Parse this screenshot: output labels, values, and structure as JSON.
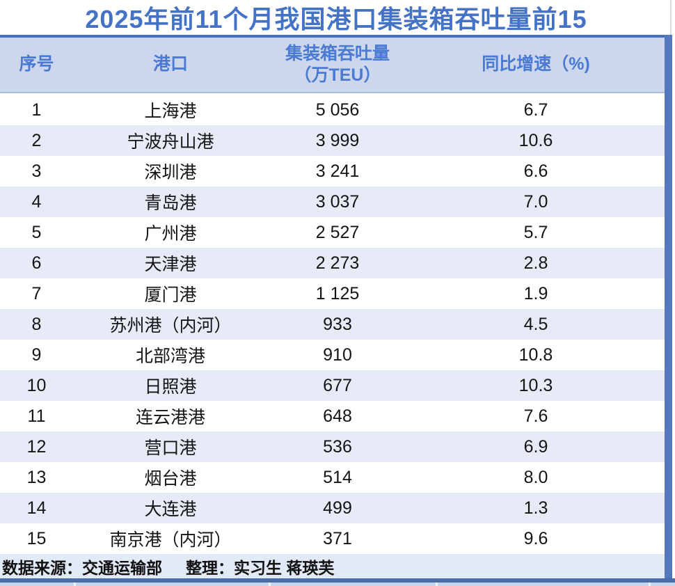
{
  "page": {
    "title": "2025年前11个月我国港口集装箱吞吐量前15"
  },
  "table": {
    "headers": {
      "rank": "序号",
      "port": "港口",
      "throughput_line1": "集装箱吞吐量",
      "throughput_line2": "（万TEU）",
      "growth": "同比增速（%)"
    },
    "rows": [
      {
        "rank": "1",
        "port": "上海港",
        "throughput": "5 056",
        "growth": "6.7"
      },
      {
        "rank": "2",
        "port": "宁波舟山港",
        "throughput": "3 999",
        "growth": "10.6"
      },
      {
        "rank": "3",
        "port": "深圳港",
        "throughput": "3 241",
        "growth": "6.6"
      },
      {
        "rank": "4",
        "port": "青岛港",
        "throughput": "3 037",
        "growth": "7.0"
      },
      {
        "rank": "5",
        "port": "广州港",
        "throughput": "2 527",
        "growth": "5.7"
      },
      {
        "rank": "6",
        "port": "天津港",
        "throughput": "2 273",
        "growth": "2.8"
      },
      {
        "rank": "7",
        "port": "厦门港",
        "throughput": "1 125",
        "growth": "1.9"
      },
      {
        "rank": "8",
        "port": "苏州港（内河）",
        "throughput": "933",
        "growth": "4.5"
      },
      {
        "rank": "9",
        "port": "北部湾港",
        "throughput": "910",
        "growth": "10.8"
      },
      {
        "rank": "10",
        "port": "日照港",
        "throughput": "677",
        "growth": "10.3"
      },
      {
        "rank": "11",
        "port": "连云港港",
        "throughput": "648",
        "growth": "7.6"
      },
      {
        "rank": "12",
        "port": "营口港",
        "throughput": "536",
        "growth": "6.9"
      },
      {
        "rank": "13",
        "port": "烟台港",
        "throughput": "514",
        "growth": "8.0"
      },
      {
        "rank": "14",
        "port": "大连港",
        "throughput": "499",
        "growth": "1.3"
      },
      {
        "rank": "15",
        "port": "南京港（内河）",
        "throughput": "371",
        "growth": "9.6"
      }
    ]
  },
  "footer": {
    "source": "数据来源：交通运输部",
    "editor": "整理：实习生 蒋瑛芙"
  },
  "colors": {
    "title_blue": "#4472C4",
    "rule_blue": "#4B6FB5",
    "header_bg": "#CCD6EC",
    "header_text": "#4A7AD1",
    "row_alt_bg": "#E7EBF7",
    "footer_bg": "#E2E9F7",
    "right_bar": "#5379BC",
    "bottom_bar": "#4A6DA8",
    "bottom_strip": "#C9D4EB",
    "body_text": "#141414"
  },
  "chart_data": {
    "type": "table",
    "title": "2025年前11个月我国港口集装箱吞吐量前15",
    "columns": [
      "序号",
      "港口",
      "集装箱吞吐量（万TEU）",
      "同比增速（%)"
    ],
    "rows": [
      [
        1,
        "上海港",
        5056,
        6.7
      ],
      [
        2,
        "宁波舟山港",
        3999,
        10.6
      ],
      [
        3,
        "深圳港",
        3241,
        6.6
      ],
      [
        4,
        "青岛港",
        3037,
        7.0
      ],
      [
        5,
        "广州港",
        2527,
        5.7
      ],
      [
        6,
        "天津港",
        2273,
        2.8
      ],
      [
        7,
        "厦门港",
        1125,
        1.9
      ],
      [
        8,
        "苏州港（内河）",
        933,
        4.5
      ],
      [
        9,
        "北部湾港",
        910,
        10.8
      ],
      [
        10,
        "日照港",
        677,
        10.3
      ],
      [
        11,
        "连云港港",
        648,
        7.6
      ],
      [
        12,
        "营口港",
        536,
        6.9
      ],
      [
        13,
        "烟台港",
        514,
        8.0
      ],
      [
        14,
        "大连港",
        499,
        1.3
      ],
      [
        15,
        "南京港（内河）",
        371,
        9.6
      ]
    ],
    "source": "数据来源：交通运输部　整理：实习生 蒋瑛芙"
  }
}
